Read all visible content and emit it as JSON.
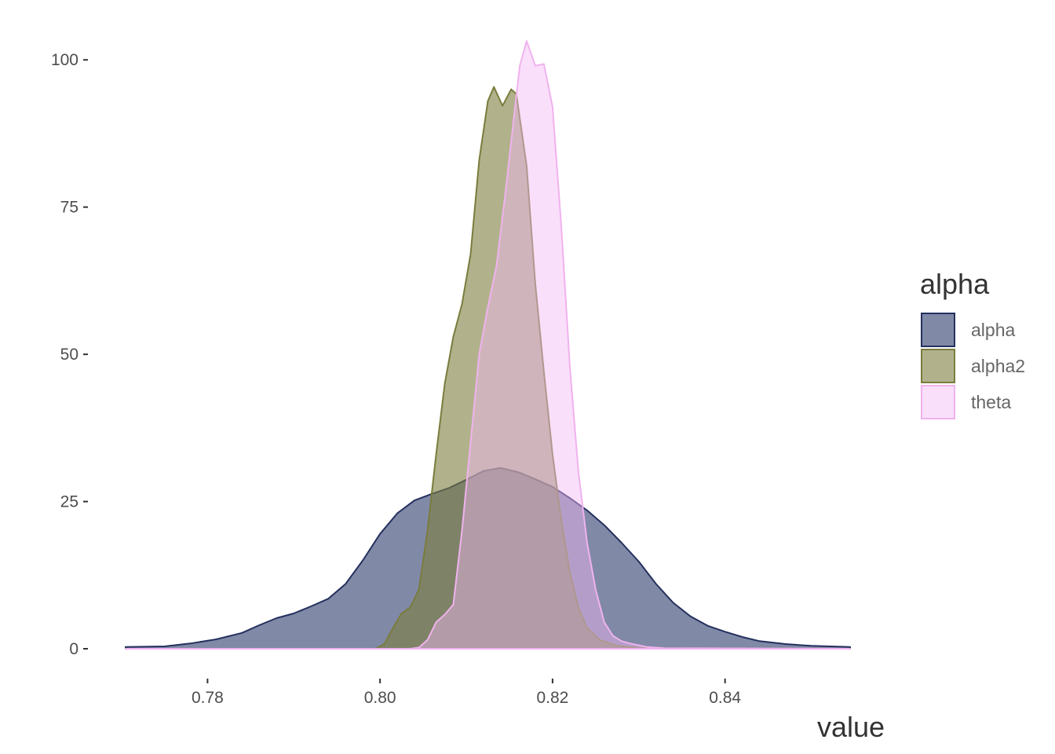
{
  "chart_data": {
    "type": "area",
    "subtype": "density",
    "title": "",
    "xlabel": "value",
    "ylabel": "",
    "xlim": [
      0.7705,
      0.8545
    ],
    "ylim": [
      0,
      103.5
    ],
    "x_ticks": [
      "0.78",
      "0.80",
      "0.82",
      "0.84"
    ],
    "x_tick_values": [
      0.78,
      0.8,
      0.82,
      0.84
    ],
    "y_ticks": [
      "0",
      "25",
      "50",
      "75",
      "100"
    ],
    "y_tick_values": [
      0,
      25,
      50,
      75,
      100
    ],
    "grid": false,
    "legend": {
      "title": "alpha",
      "position": "right"
    },
    "series": [
      {
        "name": "alpha",
        "fill": "#2b3a6b",
        "stroke": "#25305e",
        "points": [
          [
            0.7705,
            0.3
          ],
          [
            0.775,
            0.4
          ],
          [
            0.778,
            0.9
          ],
          [
            0.781,
            1.6
          ],
          [
            0.784,
            2.7
          ],
          [
            0.786,
            4.0
          ],
          [
            0.788,
            5.2
          ],
          [
            0.79,
            6.0
          ],
          [
            0.792,
            7.2
          ],
          [
            0.794,
            8.5
          ],
          [
            0.796,
            11.0
          ],
          [
            0.798,
            15.0
          ],
          [
            0.8,
            19.5
          ],
          [
            0.802,
            23.0
          ],
          [
            0.804,
            25.2
          ],
          [
            0.806,
            26.3
          ],
          [
            0.808,
            27.3
          ],
          [
            0.81,
            28.7
          ],
          [
            0.812,
            30.2
          ],
          [
            0.814,
            30.7
          ],
          [
            0.816,
            30.0
          ],
          [
            0.818,
            28.8
          ],
          [
            0.82,
            27.5
          ],
          [
            0.822,
            25.6
          ],
          [
            0.824,
            23.5
          ],
          [
            0.826,
            21.0
          ],
          [
            0.828,
            18.0
          ],
          [
            0.83,
            14.8
          ],
          [
            0.832,
            11.0
          ],
          [
            0.834,
            7.8
          ],
          [
            0.836,
            5.5
          ],
          [
            0.838,
            3.9
          ],
          [
            0.84,
            2.9
          ],
          [
            0.842,
            2.0
          ],
          [
            0.844,
            1.3
          ],
          [
            0.847,
            0.8
          ],
          [
            0.85,
            0.5
          ],
          [
            0.8545,
            0.3
          ]
        ]
      },
      {
        "name": "alpha2",
        "fill": "#7d7f3f",
        "stroke": "#7a7c3d",
        "points": [
          [
            0.7705,
            0
          ],
          [
            0.7995,
            0
          ],
          [
            0.8005,
            0.8
          ],
          [
            0.8015,
            3.5
          ],
          [
            0.8025,
            6.0
          ],
          [
            0.8035,
            7.0
          ],
          [
            0.8045,
            10.0
          ],
          [
            0.8055,
            20.0
          ],
          [
            0.8065,
            33.0
          ],
          [
            0.8075,
            45.0
          ],
          [
            0.8085,
            53.0
          ],
          [
            0.8095,
            58.5
          ],
          [
            0.8105,
            67.0
          ],
          [
            0.8115,
            83.0
          ],
          [
            0.8125,
            93.0
          ],
          [
            0.8132,
            95.4
          ],
          [
            0.8142,
            92.2
          ],
          [
            0.8152,
            95.0
          ],
          [
            0.8158,
            94.2
          ],
          [
            0.817,
            82.0
          ],
          [
            0.818,
            62.0
          ],
          [
            0.819,
            47.0
          ],
          [
            0.82,
            33.0
          ],
          [
            0.821,
            22.0
          ],
          [
            0.822,
            13.0
          ],
          [
            0.823,
            7.0
          ],
          [
            0.824,
            3.5
          ],
          [
            0.8255,
            1.5
          ],
          [
            0.8275,
            0.5
          ],
          [
            0.83,
            0.1
          ],
          [
            0.8545,
            0
          ]
        ]
      },
      {
        "name": "theta",
        "fill": "#f5b8f3",
        "stroke": "#f0b2ee",
        "points": [
          [
            0.7705,
            0
          ],
          [
            0.8035,
            0
          ],
          [
            0.8045,
            0.2
          ],
          [
            0.8055,
            1.5
          ],
          [
            0.8065,
            4.5
          ],
          [
            0.8075,
            5.8
          ],
          [
            0.8085,
            7.5
          ],
          [
            0.8095,
            20.0
          ],
          [
            0.8105,
            35.0
          ],
          [
            0.8115,
            50.0
          ],
          [
            0.8125,
            58.0
          ],
          [
            0.8135,
            65.0
          ],
          [
            0.8145,
            77.0
          ],
          [
            0.8155,
            90.0
          ],
          [
            0.8162,
            99.0
          ],
          [
            0.817,
            103.2
          ],
          [
            0.818,
            99.0
          ],
          [
            0.819,
            99.3
          ],
          [
            0.82,
            92.0
          ],
          [
            0.821,
            72.0
          ],
          [
            0.822,
            48.0
          ],
          [
            0.823,
            30.0
          ],
          [
            0.824,
            18.0
          ],
          [
            0.825,
            10.0
          ],
          [
            0.826,
            4.5
          ],
          [
            0.827,
            2.2
          ],
          [
            0.828,
            1.3
          ],
          [
            0.829,
            0.9
          ],
          [
            0.831,
            0.3
          ],
          [
            0.833,
            0.1
          ],
          [
            0.8545,
            0
          ]
        ]
      }
    ]
  }
}
